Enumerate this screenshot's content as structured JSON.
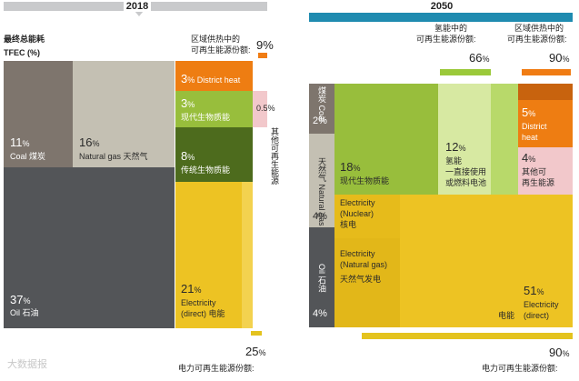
{
  "colors": {
    "coal": "#7e756d",
    "gas": "#c4c0b3",
    "oil": "#535558",
    "district": "#ee7d12",
    "bio_mod": "#98be3c",
    "bio_trad": "#4d6b1d",
    "elec": "#edc323",
    "other": "#f2c8cb",
    "bar2018": "#c9cacc",
    "bar2050": "#1f8bb0"
  },
  "chart_data": [
    {
      "type": "treemap",
      "title": "2018",
      "ylabel": "最终总能耗 TFEC (%)",
      "items": [
        {
          "name": "Coal 煤炭",
          "value": 11
        },
        {
          "name": "Natural gas 天然气",
          "value": 16
        },
        {
          "name": "Oil 石油",
          "value": 37
        },
        {
          "name": "District heat",
          "value": 3
        },
        {
          "name": "现代生物质能",
          "value": 3
        },
        {
          "name": "其他可再生能源",
          "value": 0.5
        },
        {
          "name": "传统生物质能",
          "value": 8
        },
        {
          "name": "Electricity (direct) 电能",
          "value": 21
        }
      ],
      "renewable_shares": [
        {
          "label": "区域供热中的可再生能源份额:",
          "value": "9%"
        },
        {
          "label": "电力可再生能源份额:",
          "value": "25%"
        }
      ]
    },
    {
      "type": "treemap",
      "title": "2050",
      "items": [
        {
          "name": "Coal 煤炭",
          "value": 2
        },
        {
          "name": "Natural gas 天然气",
          "value": 4
        },
        {
          "name": "Oil 石油",
          "value": 4
        },
        {
          "name": "现代生物质能",
          "value": 18
        },
        {
          "name": "氢能 一直接使用或燃料电池",
          "value": 12
        },
        {
          "name": "District heat",
          "value": 5
        },
        {
          "name": "其他可再生能源",
          "value": 4
        },
        {
          "name": "Electricity (Nuclear) 核电",
          "value": null
        },
        {
          "name": "Electricity (Natural gas) 天然气发电",
          "value": null
        },
        {
          "name": "Electricity (direct) 电能",
          "value": 51
        }
      ],
      "renewable_shares": [
        {
          "label": "氢能中的可再生能源份额:",
          "value": "66%"
        },
        {
          "label": "区域供热中的可再生能源份额:",
          "value": "90%"
        },
        {
          "label": "电力可再生能源份额:",
          "value": "90%"
        }
      ]
    }
  ],
  "text": {
    "year2018": "2018",
    "year2050": "2050",
    "ylabel1": "最终总能耗",
    "ylabel2": "TFEC (%)",
    "l18": {
      "coal_pct": "11",
      "coal_name": "Coal 煤炭",
      "gas_pct": "16",
      "gas_name": "Natural gas 天然气",
      "oil_pct": "37",
      "oil_name": "Oil 石油",
      "dh_pct": "3",
      "dh_name": "District heat",
      "bio_pct": "3",
      "bio_name": "现代生物质能",
      "other_pct": "0.5%",
      "trad_pct": "8",
      "trad_name": "传统生物质能",
      "elec_pct": "21",
      "elec_name1": "Electricity",
      "elec_name2": "(direct) 电能",
      "other_vert": "其他可再生能源",
      "dh_share_l1": "区域供热中的",
      "dh_share_l2": "可再生能源份额:",
      "dh_share_val": "9%",
      "el_share_val": "25",
      "el_share_lbl": "电力可再生能源份额:"
    },
    "l50": {
      "coal_vert": "煤炭 Coal",
      "coal_pct": "2%",
      "gas_vert": "天然气 Natural gas",
      "gas_pct": "4%",
      "oil_vert": "Oil 石油",
      "oil_pct": "4%",
      "bio_pct": "18",
      "bio_name": "现代生物质能",
      "h2_pct": "12",
      "h2_n1": "氢能",
      "h2_n2": "一直接使用",
      "h2_n3": "或燃料电池",
      "dh_pct": "5",
      "dh_n1": "District",
      "dh_n2": "heat",
      "other_pct": "4",
      "other_n1": "其他可",
      "other_n2": "再生能源",
      "nuc_n1": "Electricity",
      "nuc_n2": "(Nuclear)",
      "nuc_n3": "核电",
      "ng_n1": "Electricity",
      "ng_n2": "(Natural gas)",
      "ng_n3": "天然气发电",
      "elec_pct": "51",
      "elec_n1": "Electricity",
      "elec_n2": "(direct)",
      "elec_cn": "电能",
      "h2_share_l1": "氢能中的",
      "h2_share_l2": "可再生能源份额:",
      "h2_share_val": "66",
      "dh_share_l1": "区域供热中的",
      "dh_share_l2": "可再生能源份额:",
      "dh_share_val": "90",
      "el_share_val": "90",
      "el_share_lbl": "电力可再生能源份额:"
    },
    "watermark": "大数据报"
  }
}
